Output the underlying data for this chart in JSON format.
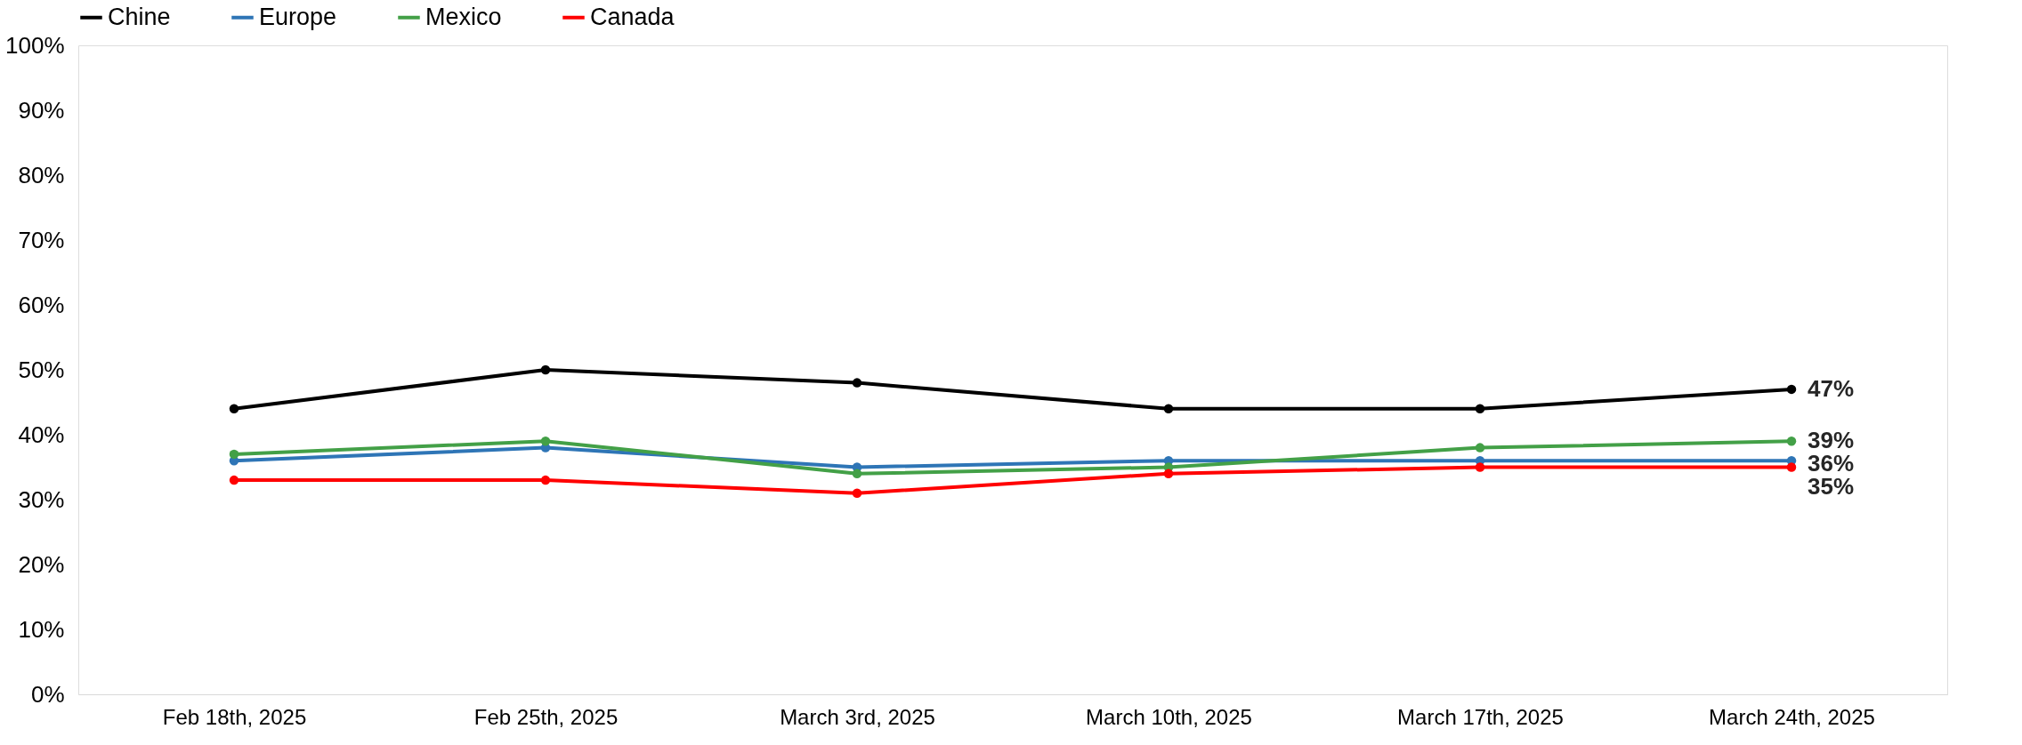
{
  "chart_data": {
    "type": "line",
    "categories": [
      "Feb 18th, 2025",
      "Feb 25th, 2025",
      "March 3rd, 2025",
      "March 10th, 2025",
      "March 17th, 2025",
      "March 24th, 2025"
    ],
    "series": [
      {
        "name": "Chine",
        "color": "#000000",
        "values": [
          44,
          50,
          48,
          44,
          44,
          47
        ],
        "value_labels": [
          null,
          null,
          null,
          null,
          null,
          "47%"
        ]
      },
      {
        "name": "Europe",
        "color": "#2e75b6",
        "values": [
          36,
          38,
          35,
          36,
          36,
          36
        ],
        "value_labels": [
          null,
          null,
          null,
          null,
          null,
          "36%"
        ]
      },
      {
        "name": "Mexico",
        "color": "#43a047",
        "values": [
          37,
          39,
          34,
          35,
          38,
          39
        ],
        "value_labels": [
          null,
          null,
          null,
          null,
          null,
          "39%"
        ]
      },
      {
        "name": "Canada",
        "color": "#ff0000",
        "values": [
          33,
          33,
          31,
          34,
          35,
          35
        ],
        "value_labels": [
          null,
          null,
          null,
          null,
          null,
          "35%"
        ]
      }
    ],
    "ylim": [
      0,
      100
    ],
    "yticks": [
      {
        "value": 0,
        "label": "0%"
      },
      {
        "value": 10,
        "label": "10%"
      },
      {
        "value": 20,
        "label": "20%"
      },
      {
        "value": 30,
        "label": "30%"
      },
      {
        "value": 40,
        "label": "40%"
      },
      {
        "value": 50,
        "label": "50%"
      },
      {
        "value": 60,
        "label": "60%"
      },
      {
        "value": 70,
        "label": "70%"
      },
      {
        "value": 80,
        "label": "80%"
      },
      {
        "value": 90,
        "label": "90%"
      },
      {
        "value": 100,
        "label": "100%"
      }
    ],
    "grid": false,
    "legend": "top",
    "marker": "circle",
    "line_style": "solid"
  }
}
